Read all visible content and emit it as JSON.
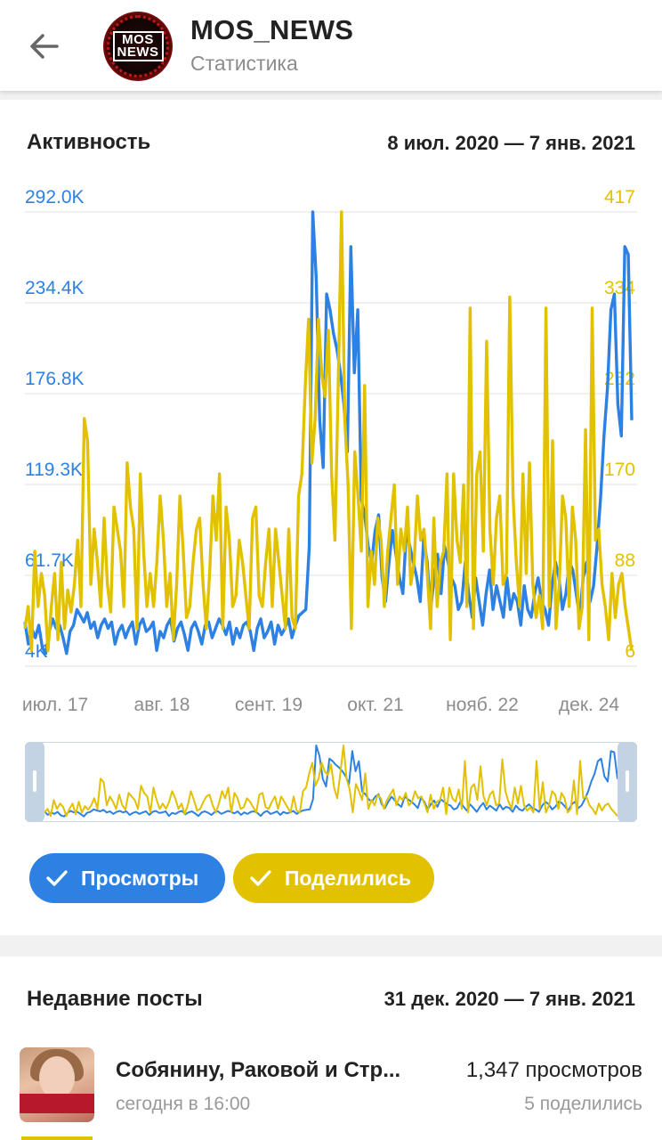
{
  "header": {
    "title": "MOS_NEWS",
    "subtitle": "Статистика",
    "avatar_text_top": "MOS",
    "avatar_text_bottom": "NEWS"
  },
  "activity": {
    "title": "Активность",
    "range": "8 июл. 2020 — 7 янв. 2021",
    "chips": [
      {
        "label": "Просмотры",
        "color": "#2d81e2"
      },
      {
        "label": "Поделились",
        "color": "#e2c100"
      }
    ]
  },
  "chart_data": {
    "type": "line",
    "left_axis_ticks": [
      "4K",
      "61.7K",
      "119.3K",
      "176.8K",
      "234.4K",
      "292.0K"
    ],
    "right_axis_ticks": [
      "6",
      "88",
      "170",
      "252",
      "334",
      "417"
    ],
    "x_tick_labels": [
      "июл. 17",
      "авг. 18",
      "сент. 19",
      "окт. 21",
      "нояб. 22",
      "дек. 24"
    ],
    "ylim_left": [
      4000,
      292000
    ],
    "ylim_right": [
      6,
      417
    ],
    "series": [
      {
        "name": "Просмотры",
        "color": "#2d81e2",
        "axis": "left",
        "values": [
          32000,
          18000,
          28000,
          22000,
          30000,
          16000,
          12000,
          26000,
          34000,
          28000,
          30000,
          22000,
          12000,
          26000,
          30000,
          40000,
          36000,
          32000,
          38000,
          28000,
          32000,
          22000,
          30000,
          34000,
          28000,
          32000,
          18000,
          26000,
          30000,
          22000,
          28000,
          32000,
          18000,
          30000,
          34000,
          26000,
          28000,
          32000,
          14000,
          26000,
          22000,
          30000,
          34000,
          20000,
          28000,
          32000,
          24000,
          14000,
          28000,
          32000,
          26000,
          18000,
          30000,
          32000,
          22000,
          28000,
          34000,
          30000,
          24000,
          32000,
          18000,
          28000,
          22000,
          30000,
          32000,
          26000,
          14000,
          28000,
          34000,
          22000,
          26000,
          32000,
          18000,
          30000,
          24000,
          28000,
          34000,
          22000,
          30000,
          36000,
          38000,
          40000,
          80000,
          292000,
          250000,
          160000,
          130000,
          240000,
          230000,
          215000,
          205000,
          190000,
          170000,
          140000,
          270000,
          190000,
          230000,
          110000,
          100000,
          80000,
          70000,
          90000,
          100000,
          60000,
          45000,
          70000,
          90000,
          75000,
          60000,
          50000,
          90000,
          80000,
          70000,
          60000,
          45000,
          85000,
          70000,
          40000,
          60000,
          75000,
          50000,
          80000,
          70000,
          60000,
          55000,
          40000,
          45000,
          70000,
          50000,
          35000,
          60000,
          45000,
          30000,
          50000,
          65000,
          40000,
          55000,
          45000,
          35000,
          60000,
          40000,
          50000,
          45000,
          30000,
          55000,
          40000,
          35000,
          50000,
          60000,
          45000,
          40000,
          30000,
          55000,
          70000,
          60000,
          40000,
          50000,
          70000,
          65000,
          50000,
          35000,
          60000,
          70000,
          45000,
          55000,
          80000,
          110000,
          150000,
          180000,
          230000,
          240000,
          170000,
          150000,
          270000,
          265000,
          160000
        ]
      },
      {
        "name": "Поделились",
        "color": "#e2c100",
        "axis": "right",
        "values": [
          40,
          60,
          20,
          110,
          60,
          90,
          70,
          20,
          60,
          90,
          30,
          100,
          40,
          75,
          55,
          80,
          120,
          60,
          230,
          210,
          80,
          130,
          100,
          60,
          140,
          80,
          55,
          150,
          130,
          110,
          60,
          190,
          150,
          130,
          40,
          180,
          110,
          60,
          90,
          60,
          100,
          160,
          120,
          60,
          90,
          30,
          80,
          160,
          110,
          50,
          60,
          100,
          130,
          140,
          80,
          40,
          90,
          160,
          120,
          180,
          40,
          150,
          120,
          60,
          70,
          120,
          100,
          70,
          40,
          140,
          150,
          70,
          60,
          100,
          130,
          60,
          130,
          100,
          70,
          40,
          130,
          50,
          40,
          160,
          180,
          260,
          320,
          190,
          230,
          320,
          270,
          250,
          310,
          180,
          120,
          260,
          417,
          230,
          170,
          40,
          200,
          160,
          110,
          260,
          60,
          110,
          80,
          140,
          120,
          60,
          110,
          140,
          170,
          80,
          130,
          110,
          150,
          80,
          100,
          160,
          120,
          130,
          90,
          40,
          140,
          60,
          100,
          110,
          180,
          30,
          180,
          120,
          100,
          170,
          60,
          330,
          40,
          180,
          200,
          110,
          300,
          130,
          80,
          140,
          160,
          80,
          90,
          340,
          160,
          100,
          60,
          180,
          90,
          190,
          80,
          50,
          70,
          40,
          330,
          60,
          210,
          40,
          80,
          160,
          140,
          60,
          150,
          120,
          40,
          60,
          220,
          30,
          330,
          120,
          130,
          80,
          60,
          30,
          90,
          50,
          80,
          90,
          60,
          40,
          20
        ]
      }
    ],
    "grid": true
  },
  "recent": {
    "title": "Недавние посты",
    "range": "31 дек. 2020 — 7 янв. 2021",
    "posts": [
      {
        "title": "Собянину, Раковой и Стр...",
        "time": "сегодня в 16:00",
        "views": "1,347 просмотров",
        "shares": "5 поделились",
        "thumb_caption": "КАК АМЕРИКА ОТНОСИТСЯ К ЛЮДЯМ, КТО БОЛЕЕТ COVID-19"
      }
    ]
  }
}
